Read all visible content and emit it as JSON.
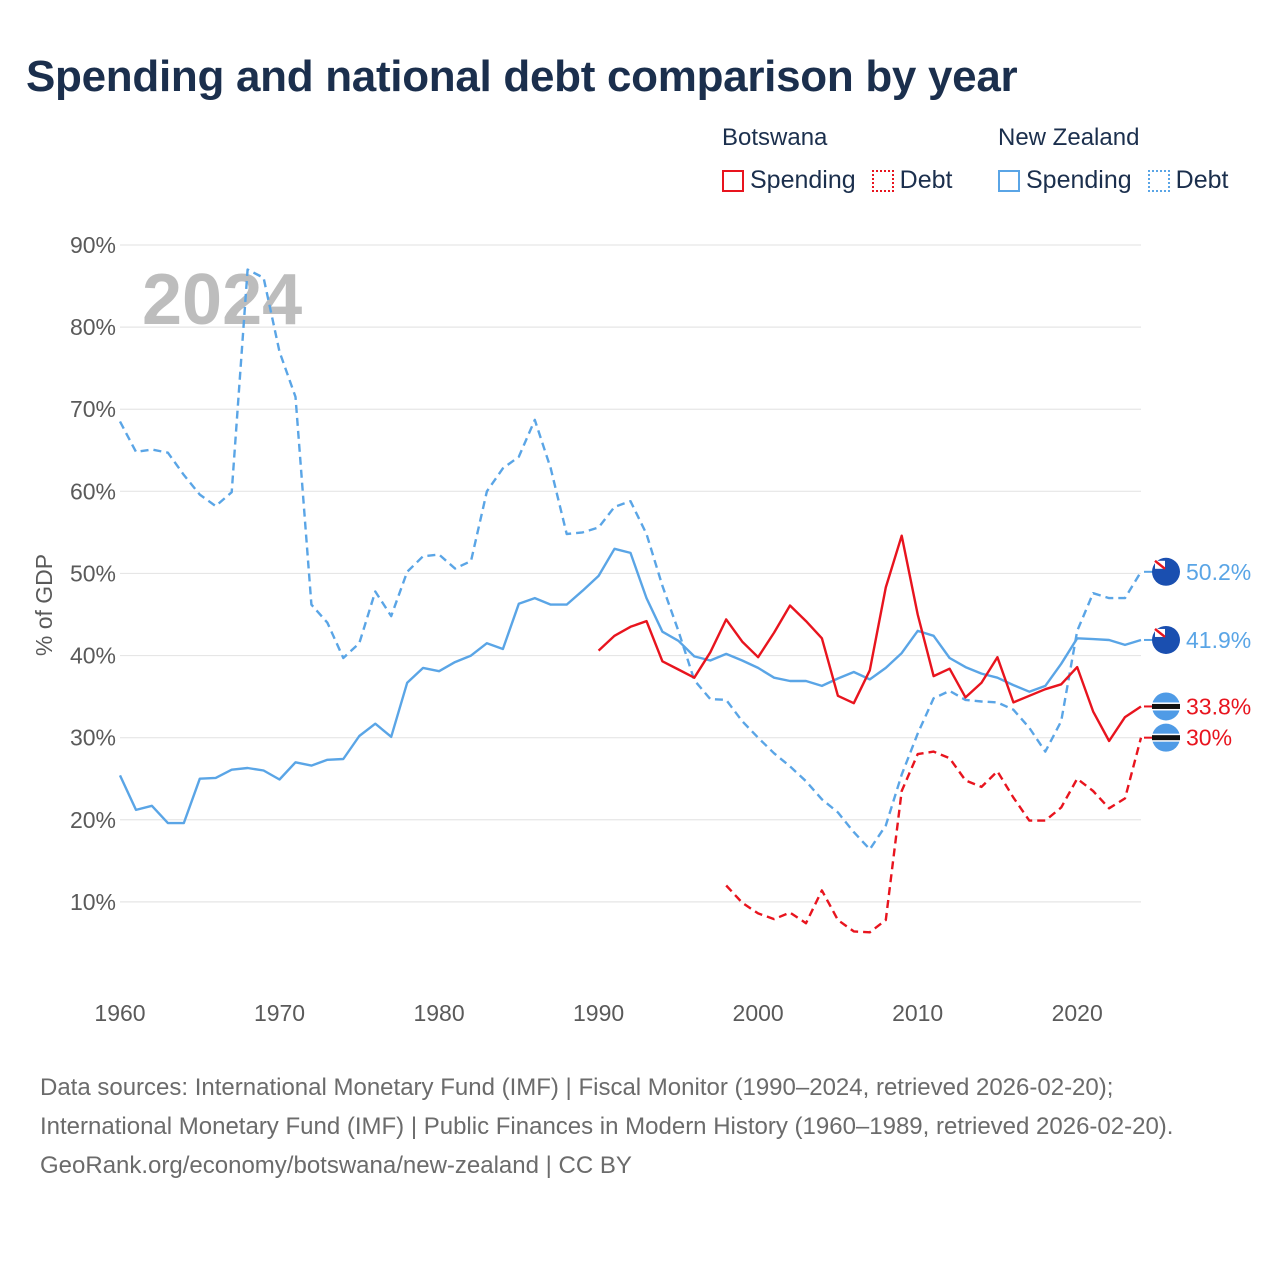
{
  "title": "Spending and national debt comparison by year",
  "legend": {
    "botswana": {
      "country": "Botswana",
      "spending": "Spending",
      "debt": "Debt",
      "color": "#e8141e"
    },
    "new_zealand": {
      "country": "New Zealand",
      "spending": "Spending",
      "debt": "Debt",
      "color": "#5aa5e6"
    }
  },
  "year_display": "2024",
  "end_labels": {
    "nz_debt": "50.2%",
    "nz_spending": "41.9%",
    "bw_spending": "33.8%",
    "bw_debt": "30%"
  },
  "footer": {
    "sources": "Data sources: International Monetary Fund (IMF) | Fiscal Monitor (1990–2024, retrieved 2026-02-20); International Monetary Fund (IMF) | Public Finances in Modern History (1960–1989, retrieved 2026-02-20).",
    "attribution": "GeoRank.org/economy/botswana/new-zealand | CC BY"
  },
  "chart_data": {
    "type": "line",
    "title": "Spending and national debt comparison by year",
    "xlabel": "",
    "ylabel": "% of GDP",
    "xlim": [
      1960,
      2024
    ],
    "ylim": [
      0,
      90
    ],
    "x_ticks": [
      1960,
      1970,
      1980,
      1990,
      2000,
      2010,
      2020
    ],
    "x_tick_labels": [
      "1960",
      "1970",
      "1980",
      "1990",
      "2000",
      "2010",
      "2020"
    ],
    "y_ticks": [
      10,
      20,
      30,
      40,
      50,
      60,
      70,
      80,
      90
    ],
    "y_tick_labels": [
      "10%",
      "20%",
      "30%",
      "40%",
      "50%",
      "60%",
      "70%",
      "80%",
      "90%"
    ],
    "grid": true,
    "legend_position": "top-right",
    "series": [
      {
        "name": "New Zealand Spending",
        "country": "New Zealand",
        "kind": "Spending",
        "color": "#5aa5e6",
        "dash": "solid",
        "x": [
          1960,
          1961,
          1962,
          1963,
          1964,
          1965,
          1966,
          1967,
          1968,
          1969,
          1970,
          1971,
          1972,
          1973,
          1974,
          1975,
          1976,
          1977,
          1978,
          1979,
          1980,
          1981,
          1982,
          1983,
          1984,
          1985,
          1986,
          1987,
          1988,
          1989,
          1990,
          1991,
          1992,
          1993,
          1994,
          1995,
          1996,
          1997,
          1998,
          1999,
          2000,
          2001,
          2002,
          2003,
          2004,
          2005,
          2006,
          2007,
          2008,
          2009,
          2010,
          2011,
          2012,
          2013,
          2014,
          2015,
          2016,
          2017,
          2018,
          2019,
          2020,
          2021,
          2022,
          2023,
          2024
        ],
        "values": [
          25.4,
          21.2,
          21.7,
          19.6,
          19.6,
          25.0,
          25.1,
          26.1,
          26.3,
          26.0,
          24.9,
          27.0,
          26.6,
          27.3,
          27.4,
          30.2,
          31.7,
          30.1,
          36.7,
          38.5,
          38.1,
          39.2,
          40.0,
          41.5,
          40.8,
          46.3,
          47.0,
          46.2,
          46.2,
          47.9,
          49.7,
          53.0,
          52.5,
          47.0,
          42.9,
          41.8,
          39.9,
          39.4,
          40.2,
          39.4,
          38.5,
          37.3,
          36.9,
          36.9,
          36.3,
          37.2,
          38.0,
          37.1,
          38.5,
          40.3,
          43.0,
          42.4,
          39.7,
          38.6,
          37.8,
          37.3,
          36.4,
          35.6,
          36.3,
          39.0,
          42.1,
          42.0,
          41.9,
          41.3,
          41.9
        ]
      },
      {
        "name": "New Zealand Debt",
        "country": "New Zealand",
        "kind": "Debt",
        "color": "#5aa5e6",
        "dash": "dashed",
        "x": [
          1960,
          1961,
          1962,
          1963,
          1964,
          1965,
          1966,
          1967,
          1968,
          1969,
          1970,
          1971,
          1972,
          1973,
          1974,
          1975,
          1976,
          1977,
          1978,
          1979,
          1980,
          1981,
          1982,
          1983,
          1984,
          1985,
          1986,
          1987,
          1988,
          1989,
          1990,
          1991,
          1992,
          1993,
          1994,
          1995,
          1996,
          1997,
          1998,
          1999,
          2000,
          2001,
          2002,
          2003,
          2004,
          2005,
          2006,
          2007,
          2008,
          2009,
          2010,
          2011,
          2012,
          2013,
          2014,
          2015,
          2016,
          2017,
          2018,
          2019,
          2020,
          2021,
          2022,
          2023,
          2024
        ],
        "values": [
          68.5,
          64.8,
          65.1,
          64.7,
          62.0,
          59.6,
          58.2,
          59.9,
          87.0,
          86.0,
          77.0,
          71.5,
          46.2,
          44.0,
          39.7,
          41.5,
          47.8,
          44.8,
          50.2,
          52.1,
          52.3,
          50.6,
          51.5,
          60.0,
          62.8,
          64.2,
          68.7,
          62.8,
          54.8,
          55.0,
          55.6,
          58.1,
          58.8,
          54.8,
          48.5,
          43.0,
          37.0,
          34.7,
          34.6,
          32.0,
          30.0,
          28.1,
          26.5,
          24.7,
          22.5,
          20.9,
          18.5,
          16.4,
          19.3,
          25.5,
          30.5,
          34.8,
          35.7,
          34.6,
          34.4,
          34.3,
          33.4,
          31.2,
          28.3,
          32.0,
          43.0,
          47.6,
          47.0,
          47.0,
          50.2
        ]
      },
      {
        "name": "Botswana Spending",
        "country": "Botswana",
        "kind": "Spending",
        "color": "#e8141e",
        "dash": "solid",
        "x": [
          1990,
          1991,
          1992,
          1993,
          1994,
          1995,
          1996,
          1997,
          1998,
          1999,
          2000,
          2001,
          2002,
          2003,
          2004,
          2005,
          2006,
          2007,
          2008,
          2009,
          2010,
          2011,
          2012,
          2013,
          2014,
          2015,
          2016,
          2017,
          2018,
          2019,
          2020,
          2021,
          2022,
          2023,
          2024
        ],
        "values": [
          40.6,
          42.4,
          43.5,
          44.2,
          39.3,
          38.3,
          37.3,
          40.4,
          44.4,
          41.7,
          39.8,
          42.8,
          46.1,
          44.2,
          42.1,
          35.1,
          34.2,
          38.2,
          48.3,
          54.6,
          45.0,
          37.5,
          38.4,
          34.9,
          36.7,
          39.8,
          34.3,
          35.1,
          35.9,
          36.5,
          38.6,
          33.2,
          29.6,
          32.5,
          33.8
        ]
      },
      {
        "name": "Botswana Debt",
        "country": "Botswana",
        "kind": "Debt",
        "color": "#e8141e",
        "dash": "dashed",
        "x": [
          1998,
          1999,
          2000,
          2001,
          2002,
          2003,
          2004,
          2005,
          2006,
          2007,
          2008,
          2009,
          2010,
          2011,
          2012,
          2013,
          2014,
          2015,
          2016,
          2017,
          2018,
          2019,
          2020,
          2021,
          2022,
          2023,
          2024
        ],
        "values": [
          12.0,
          9.9,
          8.6,
          7.9,
          8.7,
          7.4,
          11.4,
          7.8,
          6.4,
          6.3,
          7.8,
          23.5,
          28.0,
          28.3,
          27.5,
          24.8,
          24.0,
          25.9,
          22.7,
          19.9,
          19.9,
          21.5,
          25.0,
          23.5,
          21.4,
          22.6,
          30.0
        ]
      }
    ]
  }
}
